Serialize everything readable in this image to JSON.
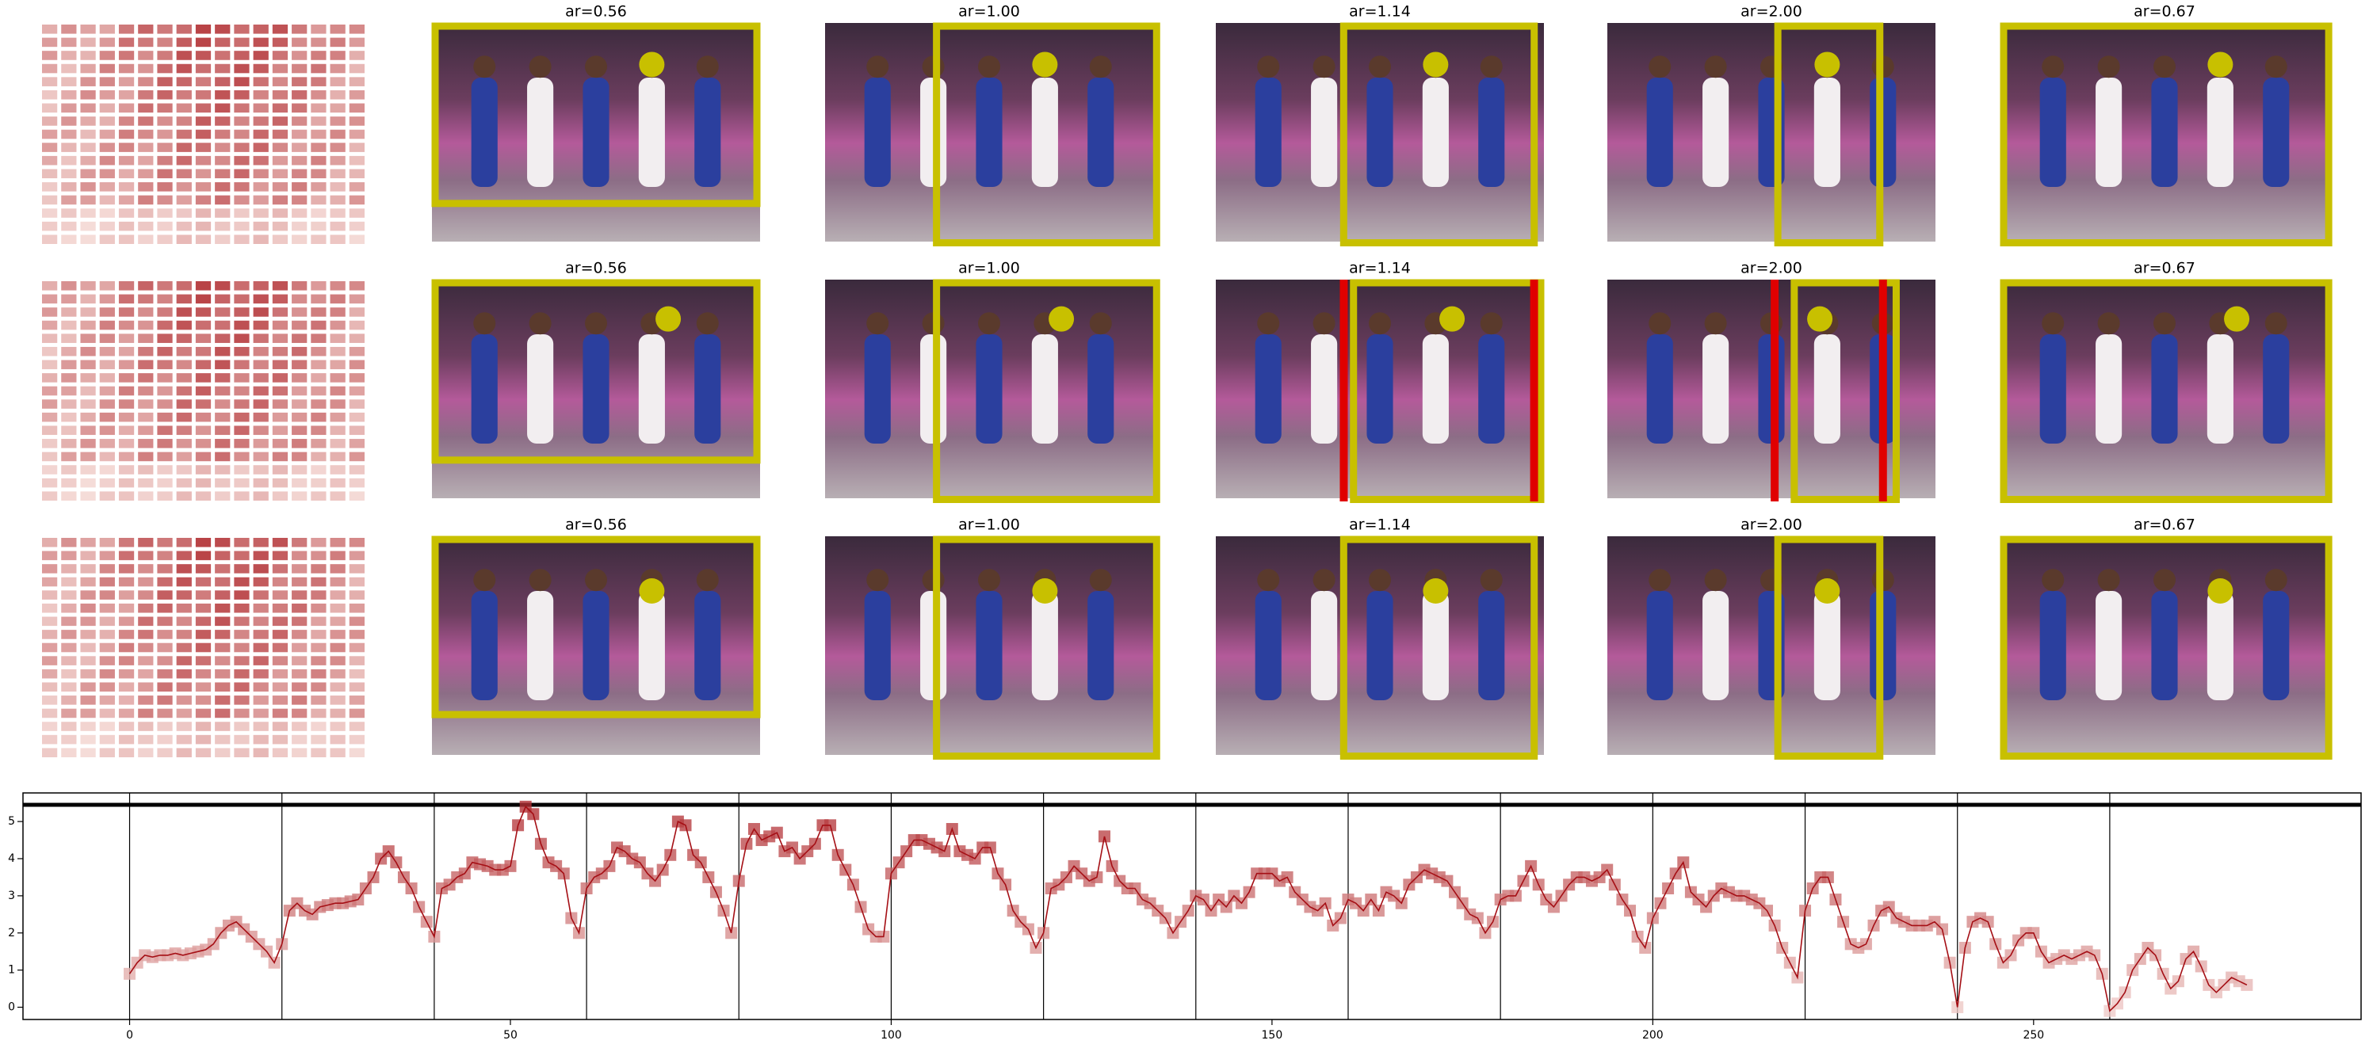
{
  "panels": {
    "titles": [
      [
        "ar=0.56",
        "ar=1.00",
        "ar=1.14",
        "ar=2.00",
        "ar=0.67"
      ],
      [
        "ar=0.56",
        "ar=1.00",
        "ar=1.14",
        "ar=2.00",
        "ar=0.67"
      ],
      [
        "ar=0.56",
        "ar=1.00",
        "ar=1.14",
        "ar=2.00",
        "ar=0.67"
      ]
    ]
  },
  "chart_data": {
    "type": "line",
    "color": "#a50f15",
    "marker": "square",
    "colormap": "Reds",
    "xlim": [
      -14,
      293
    ],
    "ylim": [
      -0.33,
      5.77
    ],
    "xticks": [
      0,
      50,
      100,
      150,
      200,
      250
    ],
    "yticks": [
      0,
      1,
      2,
      3,
      4,
      5
    ],
    "vlines": [
      0,
      20,
      40,
      60,
      80,
      100,
      120,
      140,
      160,
      180,
      200,
      220,
      240,
      260
    ],
    "hline": 5.45,
    "x": [
      0,
      1,
      2,
      3,
      4,
      5,
      6,
      7,
      8,
      9,
      10,
      11,
      12,
      13,
      14,
      15,
      16,
      17,
      18,
      19,
      20,
      21,
      22,
      23,
      24,
      25,
      26,
      27,
      28,
      29,
      30,
      31,
      32,
      33,
      34,
      35,
      36,
      37,
      38,
      39,
      40,
      41,
      42,
      43,
      44,
      45,
      46,
      47,
      48,
      49,
      50,
      51,
      52,
      53,
      54,
      55,
      56,
      57,
      58,
      59,
      60,
      61,
      62,
      63,
      64,
      65,
      66,
      67,
      68,
      69,
      70,
      71,
      72,
      73,
      74,
      75,
      76,
      77,
      78,
      79,
      80,
      81,
      82,
      83,
      84,
      85,
      86,
      87,
      88,
      89,
      90,
      91,
      92,
      93,
      94,
      95,
      96,
      97,
      98,
      99,
      100,
      101,
      102,
      103,
      104,
      105,
      106,
      107,
      108,
      109,
      110,
      111,
      112,
      113,
      114,
      115,
      116,
      117,
      118,
      119,
      120,
      121,
      122,
      123,
      124,
      125,
      126,
      127,
      128,
      129,
      130,
      131,
      132,
      133,
      134,
      135,
      136,
      137,
      138,
      139,
      140,
      141,
      142,
      143,
      144,
      145,
      146,
      147,
      148,
      149,
      150,
      151,
      152,
      153,
      154,
      155,
      156,
      157,
      158,
      159,
      160,
      161,
      162,
      163,
      164,
      165,
      166,
      167,
      168,
      169,
      170,
      171,
      172,
      173,
      174,
      175,
      176,
      177,
      178,
      179,
      180,
      181,
      182,
      183,
      184,
      185,
      186,
      187,
      188,
      189,
      190,
      191,
      192,
      193,
      194,
      195,
      196,
      197,
      198,
      199,
      200,
      201,
      202,
      203,
      204,
      205,
      206,
      207,
      208,
      209,
      210,
      211,
      212,
      213,
      214,
      215,
      216,
      217,
      218,
      219,
      220,
      221,
      222,
      223,
      224,
      225,
      226,
      227,
      228,
      229,
      230,
      231,
      232,
      233,
      234,
      235,
      236,
      237,
      238,
      239,
      240,
      241,
      242,
      243,
      244,
      245,
      246,
      247,
      248,
      249,
      250,
      251,
      252,
      253,
      254,
      255,
      256,
      257,
      258,
      259,
      260,
      261,
      262,
      263,
      264,
      265,
      266,
      267,
      268,
      269,
      270,
      271,
      272,
      273,
      274,
      275,
      276,
      277,
      278
    ],
    "values": [
      0.9,
      1.2,
      1.4,
      1.35,
      1.4,
      1.4,
      1.45,
      1.4,
      1.45,
      1.5,
      1.55,
      1.7,
      2.0,
      2.2,
      2.3,
      2.1,
      1.9,
      1.7,
      1.5,
      1.2,
      1.7,
      2.6,
      2.8,
      2.6,
      2.5,
      2.7,
      2.75,
      2.8,
      2.8,
      2.85,
      2.9,
      3.2,
      3.5,
      4.0,
      4.2,
      3.9,
      3.5,
      3.2,
      2.7,
      2.3,
      1.9,
      3.2,
      3.3,
      3.5,
      3.6,
      3.9,
      3.85,
      3.8,
      3.7,
      3.7,
      3.8,
      4.9,
      5.4,
      5.2,
      4.4,
      3.9,
      3.8,
      3.6,
      2.4,
      2.0,
      3.2,
      3.5,
      3.6,
      3.8,
      4.3,
      4.2,
      4.0,
      3.9,
      3.6,
      3.4,
      3.7,
      4.1,
      5.0,
      4.9,
      4.1,
      3.9,
      3.5,
      3.1,
      2.6,
      2.0,
      3.4,
      4.4,
      4.8,
      4.5,
      4.6,
      4.7,
      4.2,
      4.3,
      4.0,
      4.2,
      4.4,
      4.9,
      4.9,
      4.1,
      3.7,
      3.3,
      2.7,
      2.1,
      1.9,
      1.9,
      3.6,
      3.9,
      4.2,
      4.5,
      4.5,
      4.4,
      4.3,
      4.2,
      4.8,
      4.2,
      4.1,
      4.0,
      4.3,
      4.3,
      3.6,
      3.3,
      2.6,
      2.3,
      2.1,
      1.6,
      2.0,
      3.2,
      3.3,
      3.5,
      3.8,
      3.6,
      3.4,
      3.5,
      4.6,
      3.8,
      3.4,
      3.2,
      3.2,
      2.9,
      2.8,
      2.6,
      2.4,
      2.0,
      2.3,
      2.6,
      3.0,
      2.9,
      2.6,
      2.9,
      2.7,
      3.0,
      2.8,
      3.1,
      3.6,
      3.6,
      3.6,
      3.4,
      3.5,
      3.1,
      2.9,
      2.7,
      2.6,
      2.8,
      2.2,
      2.4,
      2.9,
      2.8,
      2.6,
      2.9,
      2.6,
      3.1,
      3.0,
      2.8,
      3.3,
      3.5,
      3.7,
      3.6,
      3.5,
      3.4,
      3.1,
      2.8,
      2.5,
      2.4,
      2.0,
      2.3,
      2.9,
      3.0,
      3.0,
      3.4,
      3.8,
      3.3,
      2.9,
      2.7,
      3.0,
      3.3,
      3.5,
      3.5,
      3.4,
      3.5,
      3.7,
      3.3,
      2.9,
      2.6,
      1.9,
      1.6,
      2.4,
      2.8,
      3.2,
      3.6,
      3.9,
      3.1,
      2.9,
      2.7,
      3.0,
      3.2,
      3.1,
      3.0,
      3.0,
      2.9,
      2.8,
      2.6,
      2.2,
      1.6,
      1.2,
      0.8,
      2.6,
      3.2,
      3.5,
      3.5,
      2.9,
      2.3,
      1.7,
      1.6,
      1.7,
      2.2,
      2.6,
      2.7,
      2.4,
      2.3,
      2.2,
      2.2,
      2.2,
      2.3,
      2.1,
      1.2,
      0.0,
      1.6,
      2.3,
      2.4,
      2.3,
      1.7,
      1.2,
      1.4,
      1.8,
      2.0,
      2.0,
      1.5,
      1.2,
      1.3,
      1.4,
      1.3,
      1.4,
      1.5,
      1.4,
      0.9,
      -0.1,
      0.1,
      0.4,
      1.0,
      1.3,
      1.6,
      1.4,
      0.9,
      0.5,
      0.7,
      1.3,
      1.5,
      1.1,
      0.6,
      0.4,
      0.6,
      0.8,
      0.7,
      0.6
    ]
  }
}
